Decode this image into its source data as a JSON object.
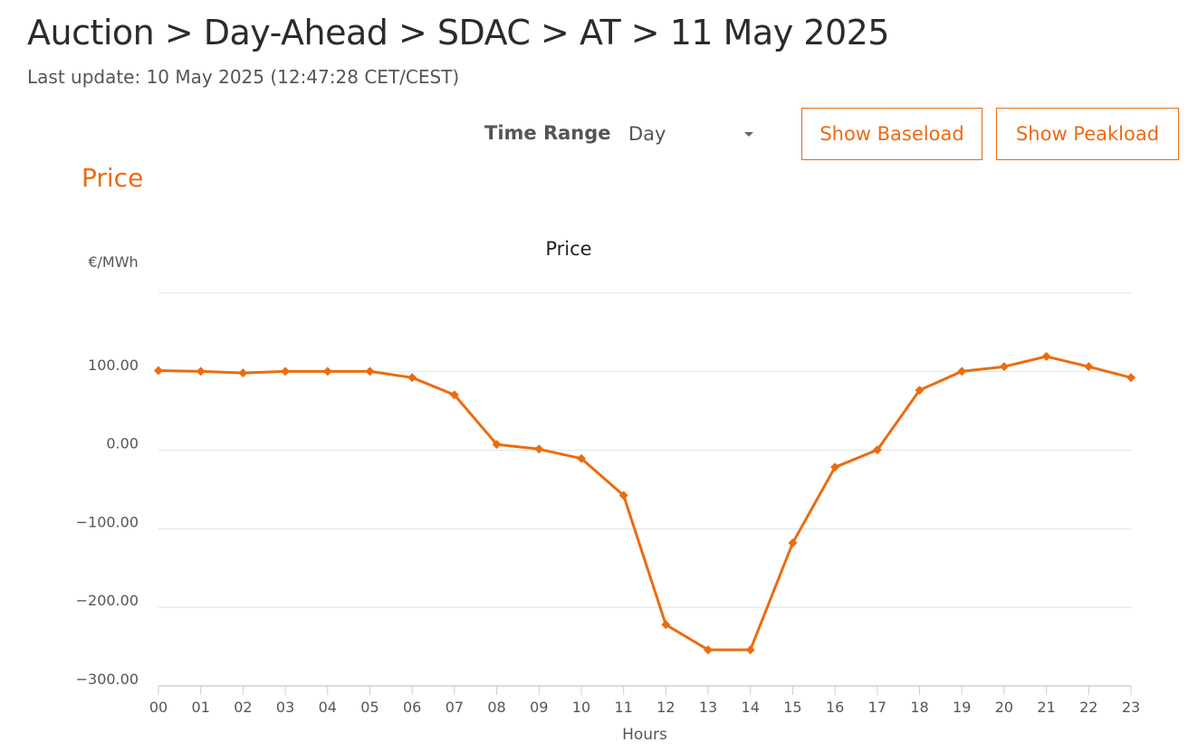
{
  "header": {
    "breadcrumb": "Auction > Day-Ahead > SDAC > AT > 11 May 2025",
    "last_update": "Last update: 10 May 2025 (12:47:28 CET/CEST)"
  },
  "controls": {
    "time_range_label": "Time Range",
    "time_range_value": "Day",
    "show_baseload": "Show Baseload",
    "show_peakload": "Show Peakload"
  },
  "section": {
    "title": "Price"
  },
  "colors": {
    "accent": "#ec6b10",
    "grid": "#dde3ea",
    "axis": "#c5d0dc"
  },
  "chart_data": {
    "type": "line",
    "title": "Price",
    "ylabel": "€/MWh",
    "xlabel": "Hours",
    "categories": [
      "00",
      "01",
      "02",
      "03",
      "04",
      "05",
      "06",
      "07",
      "08",
      "09",
      "10",
      "11",
      "12",
      "13",
      "14",
      "15",
      "16",
      "17",
      "18",
      "19",
      "20",
      "21",
      "22",
      "23"
    ],
    "series": [
      {
        "values": [
          101.5,
          100.5,
          98.5,
          100.5,
          100.5,
          100.5,
          92.5,
          70.5,
          7.5,
          1.5,
          -10.5,
          -57.5,
          -222,
          -254,
          -254,
          -118,
          -21.5,
          0.5,
          76.5,
          100.5,
          106.5,
          119.5,
          106.5,
          92.5
        ]
      }
    ],
    "y_ticks": [
      100,
      0,
      -100,
      -200,
      -300
    ],
    "y_tick_labels": [
      "100.00",
      "0.00",
      "−100.00",
      "−200.00",
      "−300.00"
    ],
    "ylim": [
      -300,
      200
    ],
    "grid": true,
    "legend": "none"
  }
}
